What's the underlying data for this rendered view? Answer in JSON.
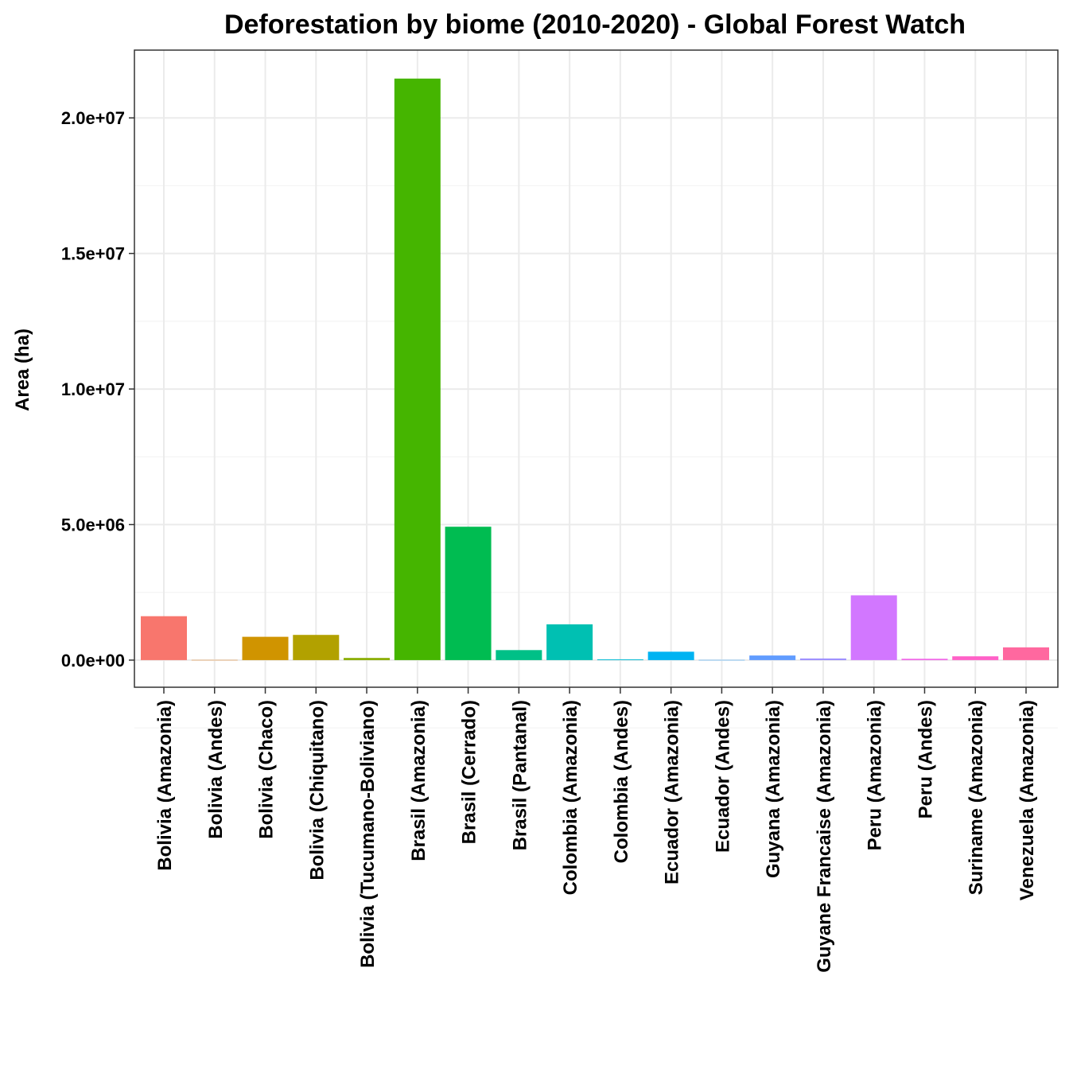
{
  "chart_data": {
    "type": "bar",
    "title": "Deforestation by biome (2010-2020) - Global Forest Watch",
    "xlabel": "",
    "ylabel": "Area (ha)",
    "ylim": [
      -1000000,
      22500000
    ],
    "y_ticks": [
      0,
      5000000,
      10000000,
      15000000,
      20000000
    ],
    "y_tick_labels": [
      "0.0e+00",
      "5.0e+06",
      "1.0e+07",
      "1.5e+07",
      "2.0e+07"
    ],
    "grid": true,
    "legend": "none",
    "categories": [
      "Bolivia (Amazonia)",
      "Bolivia (Andes)",
      "Bolivia (Chaco)",
      "Bolivia (Chiquitano)",
      "Bolivia (Tucumano-Boliviano)",
      "Brasil (Amazonia)",
      "Brasil (Cerrado)",
      "Brasil (Pantanal)",
      "Colombia (Amazonia)",
      "Colombia (Andes)",
      "Ecuador (Amazonia)",
      "Ecuador (Andes)",
      "Guyana (Amazonia)",
      "Guyane Francaise (Amazonia)",
      "Peru (Amazonia)",
      "Peru (Andes)",
      "Suriname (Amazonia)",
      "Venezuela (Amazonia)"
    ],
    "values": [
      1620000,
      5000,
      860000,
      930000,
      80000,
      21450000,
      4920000,
      370000,
      1320000,
      30000,
      310000,
      5000,
      170000,
      60000,
      2390000,
      50000,
      140000,
      470000
    ],
    "colors": [
      "#F8766D",
      "#E7851E",
      "#D09400",
      "#B2A100",
      "#89AC00",
      "#45B500",
      "#00BC51",
      "#00C087",
      "#00C0B2",
      "#00BCD6",
      "#00B3F2",
      "#29A3FF",
      "#619CFF",
      "#9C8DFF",
      "#D277FF",
      "#F166E8",
      "#FF61C7",
      "#FF689F"
    ]
  }
}
